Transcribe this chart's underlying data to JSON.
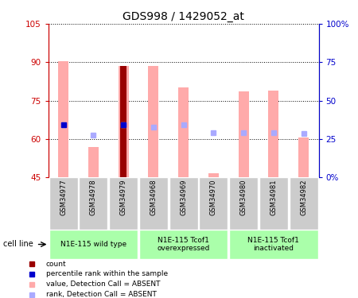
{
  "title": "GDS998 / 1429052_at",
  "samples": [
    "GSM34977",
    "GSM34978",
    "GSM34979",
    "GSM34968",
    "GSM34969",
    "GSM34970",
    "GSM34980",
    "GSM34981",
    "GSM34982"
  ],
  "cell_groups": [
    {
      "label": "N1E-115 wild type",
      "start": 0,
      "end": 2,
      "color": "#aaffaa"
    },
    {
      "label": "N1E-115 Tcof1\noverexpressed",
      "start": 3,
      "end": 5,
      "color": "#aaffaa"
    },
    {
      "label": "N1E-115 Tcof1\ninactivated",
      "start": 6,
      "end": 8,
      "color": "#aaffaa"
    }
  ],
  "ylim_left": [
    45,
    105
  ],
  "ylim_right": [
    0,
    100
  ],
  "yticks_left": [
    45,
    60,
    75,
    90,
    105
  ],
  "yticks_right": [
    0,
    25,
    50,
    75,
    100
  ],
  "ytick_labels_left": [
    "45",
    "60",
    "75",
    "90",
    "105"
  ],
  "ytick_labels_right": [
    "0%",
    "25",
    "50",
    "75",
    "100%"
  ],
  "left_axis_color": "#cc0000",
  "right_axis_color": "#0000cc",
  "value_bars": {
    "GSM34977": 90.5,
    "GSM34978": 57.0,
    "GSM34979": 88.5,
    "GSM34968": 88.5,
    "GSM34969": 80.0,
    "GSM34970": 46.5,
    "GSM34980": 78.5,
    "GSM34981": 79.0,
    "GSM34982": 60.5
  },
  "rank_squares": {
    "GSM34977": 65.5,
    "GSM34978": 61.5,
    "GSM34979": 65.5,
    "GSM34968": 64.5,
    "GSM34969": 65.5,
    "GSM34970": 62.5,
    "GSM34980": 62.5,
    "GSM34981": 62.5,
    "GSM34982": 62.0
  },
  "count_bars": {
    "GSM34979": 88.5
  },
  "count_bar_color": "#990000",
  "value_bar_color": "#ffaaaa",
  "rank_square_color": "#aaaaff",
  "percentile_square_color": "#0000cc",
  "percentile_rank": {
    "GSM34977": 65.5,
    "GSM34979": 65.5
  },
  "sample_box_color": "#cccccc",
  "plot_bg": "white",
  "fig_bg": "white",
  "bar_width": 0.35,
  "count_bar_width": 0.22,
  "legend_items": [
    {
      "color": "#990000",
      "label": "count"
    },
    {
      "color": "#0000cc",
      "label": "percentile rank within the sample"
    },
    {
      "color": "#ffaaaa",
      "label": "value, Detection Call = ABSENT"
    },
    {
      "color": "#aaaaff",
      "label": "rank, Detection Call = ABSENT"
    }
  ]
}
